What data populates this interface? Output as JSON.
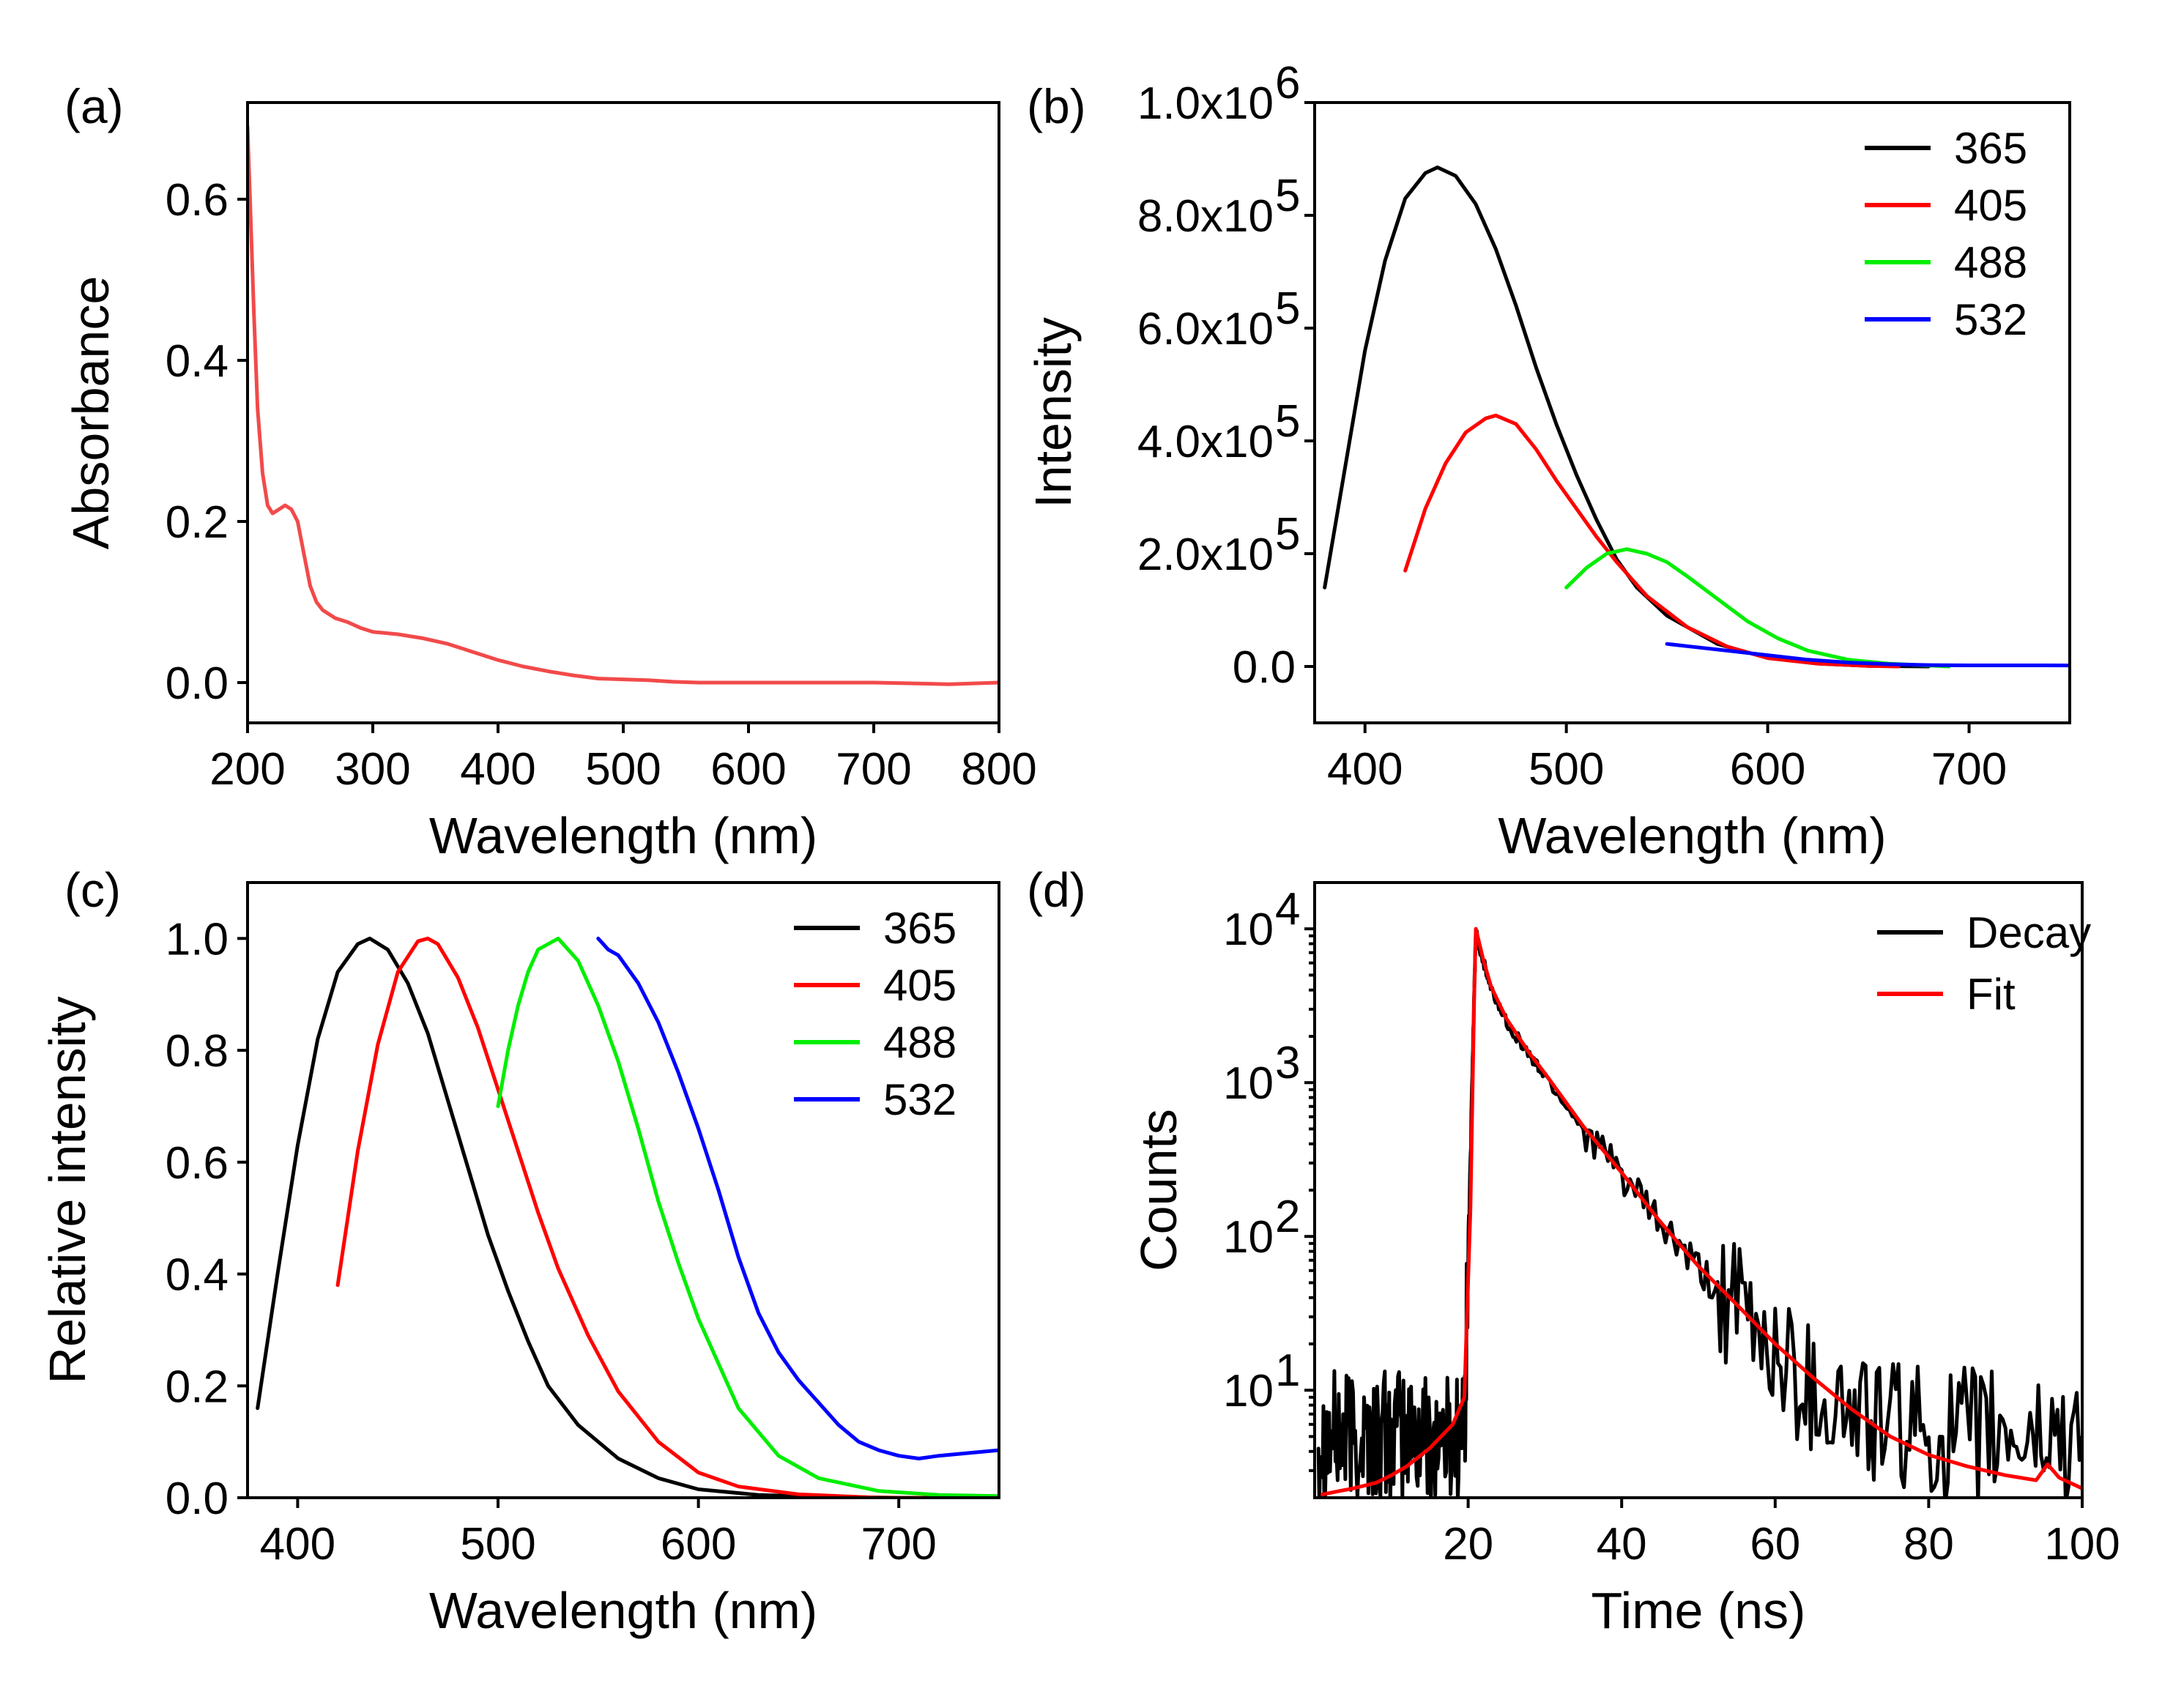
{
  "chart_data": [
    {
      "id": "a",
      "type": "line",
      "panel_label": "(a)",
      "xlabel": "Wavelength (nm)",
      "ylabel": "Absorbance",
      "xlim": [
        200,
        800
      ],
      "ylim": [
        -0.05,
        0.72
      ],
      "yscale": "linear",
      "xticks": [
        200,
        300,
        400,
        500,
        600,
        700,
        800
      ],
      "xtick_labels": [
        "200",
        "300",
        "400",
        "500",
        "600",
        "700",
        "800"
      ],
      "yticks": [
        0.0,
        0.2,
        0.4,
        0.6
      ],
      "ytick_labels": [
        "0.0",
        "0.2",
        "0.4",
        "0.6"
      ],
      "legend": null,
      "series": [
        {
          "name": "Absorbance",
          "color": "#f24a4a",
          "x": [
            200,
            202,
            205,
            208,
            212,
            216,
            220,
            225,
            230,
            235,
            240,
            245,
            250,
            255,
            260,
            265,
            270,
            280,
            290,
            300,
            320,
            340,
            360,
            380,
            400,
            420,
            440,
            460,
            480,
            500,
            520,
            540,
            560,
            600,
            650,
            700,
            760,
            800
          ],
          "y": [
            0.69,
            0.6,
            0.46,
            0.34,
            0.26,
            0.22,
            0.21,
            0.215,
            0.22,
            0.215,
            0.2,
            0.16,
            0.12,
            0.1,
            0.09,
            0.085,
            0.08,
            0.075,
            0.068,
            0.063,
            0.06,
            0.055,
            0.048,
            0.038,
            0.028,
            0.02,
            0.014,
            0.009,
            0.005,
            0.004,
            0.003,
            0.001,
            0.0,
            0.0,
            0.0,
            0.0,
            -0.002,
            0.0
          ]
        }
      ]
    },
    {
      "id": "b",
      "type": "line",
      "panel_label": "(b)",
      "xlabel": "Wavelength (nm)",
      "ylabel": "Intensity",
      "xlim": [
        375,
        750
      ],
      "ylim": [
        -100000,
        1000000
      ],
      "yscale": "linear",
      "xticks": [
        400,
        500,
        600,
        700
      ],
      "xtick_labels": [
        "400",
        "500",
        "600",
        "700"
      ],
      "yticks": [
        0,
        200000,
        400000,
        600000,
        800000,
        1000000
      ],
      "ytick_labels": [
        "0.0",
        "2.0x10",
        "4.0x10",
        "6.0x10",
        "8.0x10",
        "1.0x10"
      ],
      "ytick_exponents": [
        "",
        "5",
        "5",
        "5",
        "5",
        "6"
      ],
      "legend": {
        "position": "top-right",
        "entries": [
          "365",
          "405",
          "488",
          "532"
        ]
      },
      "series": [
        {
          "name": "365",
          "color": "#000000",
          "x": [
            380,
            390,
            400,
            410,
            420,
            430,
            436,
            445,
            455,
            465,
            475,
            485,
            495,
            505,
            515,
            525,
            535,
            550,
            575,
            600,
            625,
            650,
            680
          ],
          "y": [
            140000,
            350000,
            560000,
            720000,
            830000,
            875000,
            885000,
            870000,
            820000,
            740000,
            640000,
            530000,
            430000,
            340000,
            260000,
            190000,
            140000,
            90000,
            40000,
            15000,
            5000,
            1000,
            0
          ]
        },
        {
          "name": "405",
          "color": "#ff0000",
          "x": [
            420,
            430,
            440,
            450,
            460,
            465,
            475,
            485,
            495,
            505,
            515,
            525,
            540,
            560,
            580,
            600,
            625,
            650,
            665
          ],
          "y": [
            170000,
            280000,
            360000,
            415000,
            440000,
            445000,
            430000,
            385000,
            330000,
            280000,
            230000,
            185000,
            125000,
            70000,
            35000,
            15000,
            5000,
            1000,
            0
          ]
        },
        {
          "name": "488",
          "color": "#00ee00",
          "x": [
            500,
            510,
            520,
            530,
            540,
            550,
            560,
            575,
            590,
            605,
            620,
            640,
            660,
            690
          ],
          "y": [
            140000,
            175000,
            200000,
            208000,
            200000,
            185000,
            160000,
            120000,
            80000,
            50000,
            28000,
            12000,
            5000,
            0
          ]
        },
        {
          "name": "532",
          "color": "#0000ff",
          "x": [
            550,
            560,
            580,
            600,
            620,
            640,
            660,
            680,
            700,
            720,
            750
          ],
          "y": [
            40000,
            36000,
            28000,
            20000,
            12000,
            7000,
            4000,
            2500,
            2000,
            2000,
            1800
          ]
        }
      ]
    },
    {
      "id": "c",
      "type": "line",
      "panel_label": "(c)",
      "xlabel": "Wavelength (nm)",
      "ylabel": "Relative intensity",
      "xlim": [
        375,
        750
      ],
      "ylim": [
        0,
        1.1
      ],
      "yscale": "linear",
      "xticks": [
        400,
        500,
        600,
        700
      ],
      "xtick_labels": [
        "400",
        "500",
        "600",
        "700"
      ],
      "yticks": [
        0.0,
        0.2,
        0.4,
        0.6,
        0.8,
        1.0
      ],
      "ytick_labels": [
        "0.0",
        "0.2",
        "0.4",
        "0.6",
        "0.8",
        "1.0"
      ],
      "legend": {
        "position": "top-right",
        "entries": [
          "365",
          "405",
          "488",
          "532"
        ]
      },
      "series": [
        {
          "name": "365",
          "color": "#000000",
          "x": [
            380,
            390,
            400,
            410,
            420,
            430,
            436,
            445,
            455,
            465,
            475,
            485,
            495,
            505,
            515,
            525,
            540,
            560,
            580,
            600,
            630,
            660,
            700,
            750
          ],
          "y": [
            0.16,
            0.4,
            0.63,
            0.82,
            0.94,
            0.99,
            1.0,
            0.98,
            0.92,
            0.83,
            0.71,
            0.59,
            0.47,
            0.37,
            0.28,
            0.2,
            0.13,
            0.07,
            0.035,
            0.015,
            0.005,
            0.002,
            0.0,
            0.0
          ]
        },
        {
          "name": "405",
          "color": "#ff0000",
          "x": [
            420,
            430,
            440,
            450,
            460,
            465,
            470,
            480,
            490,
            500,
            510,
            520,
            530,
            545,
            560,
            580,
            600,
            620,
            650,
            690,
            750
          ],
          "y": [
            0.38,
            0.62,
            0.81,
            0.94,
            0.995,
            1.0,
            0.99,
            0.93,
            0.84,
            0.73,
            0.62,
            0.51,
            0.41,
            0.29,
            0.19,
            0.1,
            0.045,
            0.02,
            0.006,
            0.0,
            0.0
          ]
        },
        {
          "name": "488",
          "color": "#00ee00",
          "x": [
            500,
            505,
            510,
            515,
            520,
            525,
            530,
            535,
            540,
            550,
            560,
            570,
            580,
            590,
            600,
            620,
            640,
            660,
            690,
            720,
            750
          ],
          "y": [
            0.7,
            0.8,
            0.88,
            0.94,
            0.98,
            0.99,
            1.0,
            0.98,
            0.96,
            0.88,
            0.78,
            0.66,
            0.53,
            0.42,
            0.32,
            0.16,
            0.075,
            0.035,
            0.012,
            0.005,
            0.003
          ]
        },
        {
          "name": "532",
          "color": "#0000ff",
          "x": [
            550,
            555,
            560,
            570,
            580,
            590,
            600,
            610,
            620,
            630,
            640,
            650,
            660,
            670,
            680,
            690,
            700,
            710,
            720,
            735,
            750
          ],
          "y": [
            1.0,
            0.98,
            0.97,
            0.92,
            0.85,
            0.76,
            0.66,
            0.55,
            0.43,
            0.33,
            0.26,
            0.21,
            0.17,
            0.13,
            0.1,
            0.085,
            0.075,
            0.07,
            0.075,
            0.08,
            0.085
          ]
        }
      ]
    },
    {
      "id": "d",
      "type": "line",
      "panel_label": "(d)",
      "xlabel": "Time (ns)",
      "ylabel": "Counts",
      "xlim": [
        0,
        100
      ],
      "ylim": [
        2,
        20000
      ],
      "yscale": "log",
      "xticks": [
        20,
        40,
        60,
        80,
        100
      ],
      "xtick_labels": [
        "20",
        "40",
        "60",
        "80",
        "100"
      ],
      "yticks": [
        10,
        100,
        1000,
        10000
      ],
      "ytick_labels": [
        "10",
        "10",
        "10",
        "10"
      ],
      "ytick_exponents": [
        "1",
        "2",
        "3",
        "4"
      ],
      "legend": {
        "position": "top-right",
        "entries": [
          "Decay",
          "Fit"
        ]
      },
      "series": [
        {
          "name": "Decay",
          "color": "#000000",
          "noisy": true,
          "x": [
            0.5,
            2,
            4,
            6,
            8,
            10,
            12,
            14,
            16,
            18,
            19.5,
            20.2,
            20.8,
            21,
            22,
            23,
            25,
            28,
            30,
            35,
            40,
            45,
            50,
            55,
            60,
            65,
            70,
            75,
            80,
            85,
            90,
            95,
            100
          ],
          "y": [
            5,
            5,
            5,
            5,
            5,
            5,
            5,
            5,
            5,
            5,
            5,
            200,
            4000,
            9500,
            6000,
            4000,
            2500,
            1500,
            1100,
            500,
            250,
            120,
            60,
            32,
            18,
            10,
            7,
            6,
            5,
            5,
            5,
            5,
            5
          ]
        },
        {
          "name": "Fit",
          "color": "#ff0000",
          "x": [
            1,
            3,
            5,
            8,
            10,
            12,
            15,
            18,
            19.5,
            20.3,
            20.8,
            21,
            22,
            23,
            25,
            28,
            30,
            35,
            40,
            45,
            50,
            55,
            60,
            65,
            70,
            75,
            80,
            85,
            90,
            94,
            95.5,
            97,
            100
          ],
          "y": [
            2.1,
            2.2,
            2.3,
            2.5,
            2.8,
            3.2,
            4.2,
            6,
            9,
            150,
            4000,
            10000,
            6200,
            4200,
            2600,
            1550,
            1150,
            520,
            260,
            125,
            64,
            36,
            20,
            12,
            7.5,
            5,
            3.8,
            3.2,
            2.8,
            2.6,
            3.3,
            2.7,
            2.3
          ]
        }
      ]
    }
  ]
}
